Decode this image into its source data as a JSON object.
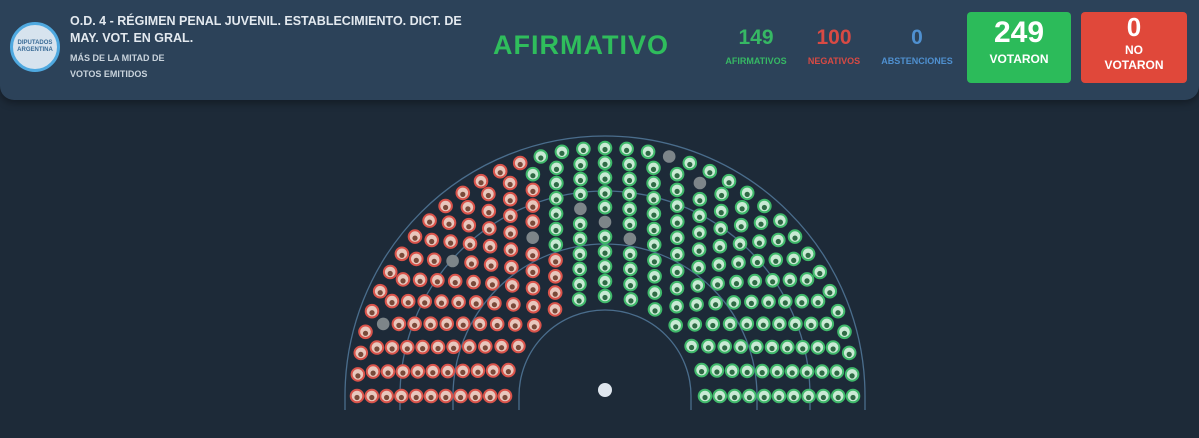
{
  "header": {
    "logo_text": "DIPUTADOS ARGENTINA",
    "title": "O.D. 4 - RÉGIMEN PENAL JUVENIL. ESTABLECIMIENTO. DICT. DE MAY. VOT. EN GRAL.",
    "majority_line1": "MÁS DE LA MITAD DE",
    "majority_line2": "VOTOS EMITIDOS",
    "result": "AFIRMATIVO",
    "afirmativos": {
      "value": "149",
      "label": "AFIRMATIVOS"
    },
    "negativos": {
      "value": "100",
      "label": "NEGATIVOS"
    },
    "abstenciones": {
      "value": "0",
      "label": "ABSTENCIONES"
    },
    "votaron": {
      "value": "249",
      "label": "VOTARON"
    },
    "no_votaron": {
      "value": "0",
      "label_line1": "NO",
      "label_line2": "VOTARON"
    }
  },
  "hemicycle": {
    "afirmativo_seats": 149,
    "negativo_seats": 100,
    "empty_seats": 8,
    "colors": {
      "afirmativo": "#3fb86a",
      "negativo": "#d9534a",
      "empty": "#7d8589",
      "background": "#1d2a38",
      "header": "#2c4259"
    }
  }
}
